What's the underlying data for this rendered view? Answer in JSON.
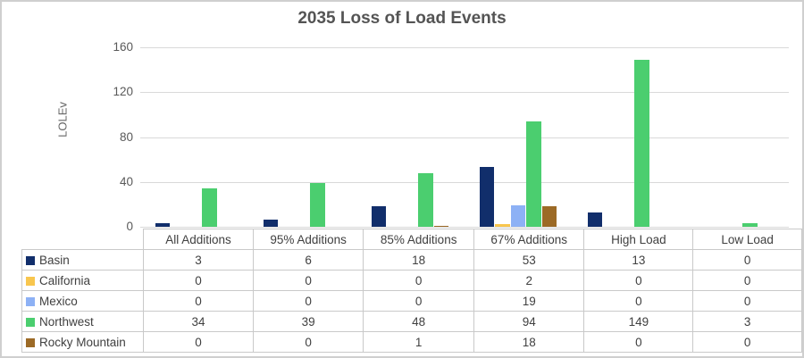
{
  "window": {
    "background": "#ffffff",
    "border_color": "#cfcfcf"
  },
  "chart_data": {
    "type": "bar",
    "title": "2035 Loss of Load Events",
    "xlabel": "",
    "ylabel": "LOLEv",
    "ylim": [
      0,
      160
    ],
    "y_ticks": [
      0,
      40,
      80,
      120,
      160
    ],
    "grid": true,
    "legend_position": "table-row-headers",
    "categories": [
      "All Additions",
      "95% Additions",
      "85% Additions",
      "67% Additions",
      "High Load",
      "Low Load"
    ],
    "series": [
      {
        "name": "Basin",
        "color": "#112e6b",
        "values": [
          3,
          6,
          18,
          53,
          13,
          0
        ]
      },
      {
        "name": "California",
        "color": "#f8c64e",
        "values": [
          0,
          0,
          0,
          2,
          0,
          0
        ]
      },
      {
        "name": "Mexico",
        "color": "#8db1f5",
        "values": [
          0,
          0,
          0,
          19,
          0,
          0
        ]
      },
      {
        "name": "Northwest",
        "color": "#4bce6f",
        "values": [
          34,
          39,
          48,
          94,
          149,
          3
        ]
      },
      {
        "name": "Rocky Mountain",
        "color": "#9c6a26",
        "values": [
          0,
          0,
          1,
          18,
          0,
          0
        ]
      }
    ],
    "colors": {
      "gridline": "#d9d9d9",
      "title_text": "#545454",
      "tick_text": "#595959",
      "table_text": "#404040",
      "table_border": "#c9c9c9"
    }
  }
}
